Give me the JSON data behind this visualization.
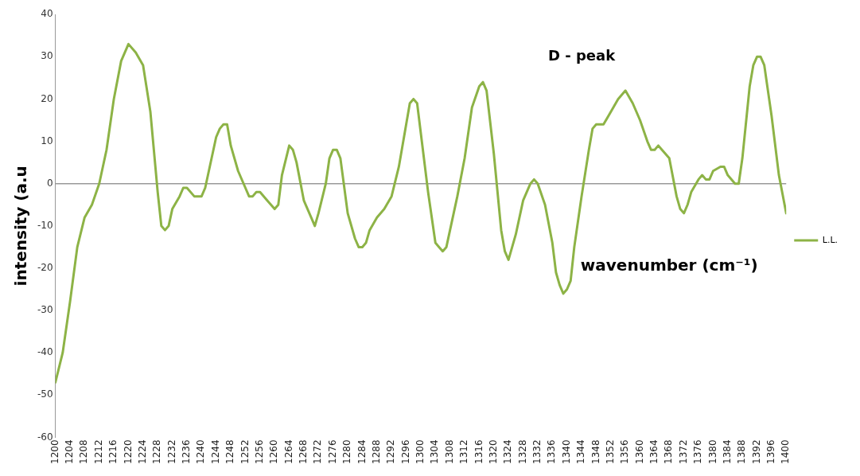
{
  "chart_data": {
    "type": "line",
    "xlabel": "wavenumber (cm⁻¹)",
    "ylabel": "intensity (a.u",
    "annotations": [
      "D - peak"
    ],
    "xlim": [
      1200,
      1400
    ],
    "ylim": [
      -60,
      40
    ],
    "yticks": [
      -60,
      -50,
      -40,
      -30,
      -20,
      -10,
      0,
      10,
      20,
      30,
      40
    ],
    "xticks": [
      1200,
      1204,
      1208,
      1212,
      1216,
      1220,
      1224,
      1228,
      1232,
      1236,
      1240,
      1244,
      1248,
      1252,
      1256,
      1260,
      1264,
      1268,
      1272,
      1276,
      1280,
      1284,
      1288,
      1292,
      1296,
      1300,
      1304,
      1308,
      1312,
      1316,
      1320,
      1324,
      1328,
      1332,
      1336,
      1340,
      1344,
      1348,
      1352,
      1356,
      1360,
      1364,
      1368,
      1372,
      1376,
      1380,
      1384,
      1388,
      1392,
      1396,
      1400
    ],
    "grid": false,
    "ref_lines": [
      {
        "axis": "y",
        "value": 0,
        "color": "#999999"
      }
    ],
    "legend": "right",
    "marker": "none",
    "line_style": "solid",
    "x": [
      1200,
      1202,
      1204,
      1206,
      1208,
      1210,
      1212,
      1214,
      1216,
      1218,
      1220,
      1222,
      1224,
      1226,
      1228,
      1229,
      1230,
      1231,
      1232,
      1234,
      1235,
      1236,
      1238,
      1240,
      1241,
      1242,
      1244,
      1245,
      1246,
      1247,
      1248,
      1250,
      1252,
      1253,
      1254,
      1255,
      1256,
      1258,
      1260,
      1261,
      1262,
      1264,
      1265,
      1266,
      1268,
      1270,
      1271,
      1272,
      1274,
      1275,
      1276,
      1277,
      1278,
      1280,
      1282,
      1283,
      1284,
      1285,
      1286,
      1288,
      1290,
      1292,
      1294,
      1296,
      1297,
      1298,
      1299,
      1300,
      1302,
      1304,
      1305,
      1306,
      1307,
      1308,
      1310,
      1312,
      1314,
      1316,
      1317,
      1318,
      1320,
      1322,
      1323,
      1324,
      1326,
      1328,
      1330,
      1331,
      1332,
      1334,
      1336,
      1337,
      1338,
      1339,
      1340,
      1341,
      1342,
      1344,
      1346,
      1347,
      1348,
      1350,
      1352,
      1354,
      1356,
      1358,
      1360,
      1362,
      1363,
      1364,
      1365,
      1366,
      1368,
      1370,
      1371,
      1372,
      1373,
      1374,
      1376,
      1377,
      1378,
      1379,
      1380,
      1382,
      1383,
      1384,
      1386,
      1387,
      1388,
      1390,
      1391,
      1392,
      1393,
      1394,
      1396,
      1398,
      1400
    ],
    "series": [
      {
        "name": "L.L.",
        "color": "#8db346",
        "values": [
          -47,
          -40,
          -28,
          -15,
          -8,
          -5,
          0,
          8,
          20,
          29,
          33,
          31,
          28,
          17,
          -2,
          -10,
          -11,
          -10,
          -6,
          -3,
          -1,
          -1,
          -3,
          -3,
          -1,
          3,
          11,
          13,
          14,
          14,
          9,
          3,
          -1,
          -3,
          -3,
          -2,
          -2,
          -4,
          -6,
          -5,
          2,
          9,
          8,
          5,
          -4,
          -8,
          -10,
          -7,
          0,
          6,
          8,
          8,
          6,
          -7,
          -13,
          -15,
          -15,
          -14,
          -11,
          -8,
          -6,
          -3,
          4,
          14,
          19,
          20,
          19,
          12,
          -2,
          -14,
          -15,
          -16,
          -15,
          -11,
          -3,
          6,
          18,
          23,
          24,
          22,
          7,
          -11,
          -16,
          -18,
          -12,
          -4,
          0,
          1,
          0,
          -5,
          -14,
          -21,
          -24,
          -26,
          -25,
          -23,
          -15,
          -3,
          8,
          13,
          14,
          14,
          17,
          20,
          22,
          19,
          15,
          10,
          8,
          8,
          9,
          8,
          6,
          -3,
          -6,
          -7,
          -5,
          -2,
          1,
          2,
          1,
          1,
          3,
          4,
          4,
          2,
          0,
          0,
          6,
          23,
          28,
          30,
          30,
          28,
          16,
          2,
          -7
        ]
      }
    ]
  }
}
